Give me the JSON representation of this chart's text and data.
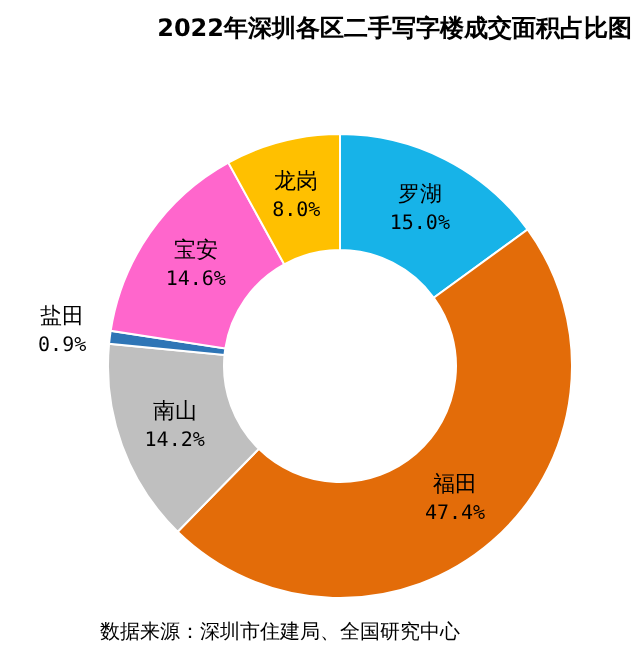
{
  "chart_data": {
    "type": "donut",
    "title": "2022年深圳各区二手写字楼成交面积占比图",
    "categories": [
      "罗湖",
      "福田",
      "南山",
      "盐田",
      "宝安",
      "龙岗"
    ],
    "values": [
      15.0,
      47.4,
      14.2,
      0.9,
      14.6,
      8.0
    ],
    "value_labels": [
      "15.0%",
      "47.4%",
      "14.2%",
      "0.9%",
      "14.6%",
      "8.0%"
    ],
    "colors": [
      "#17b3e8",
      "#e36c09",
      "#bfbfbf",
      "#2e75b6",
      "#ff66cc",
      "#ffc000"
    ],
    "annotations": [
      "数据来源：深圳市住建局、全国研究中心"
    ]
  }
}
